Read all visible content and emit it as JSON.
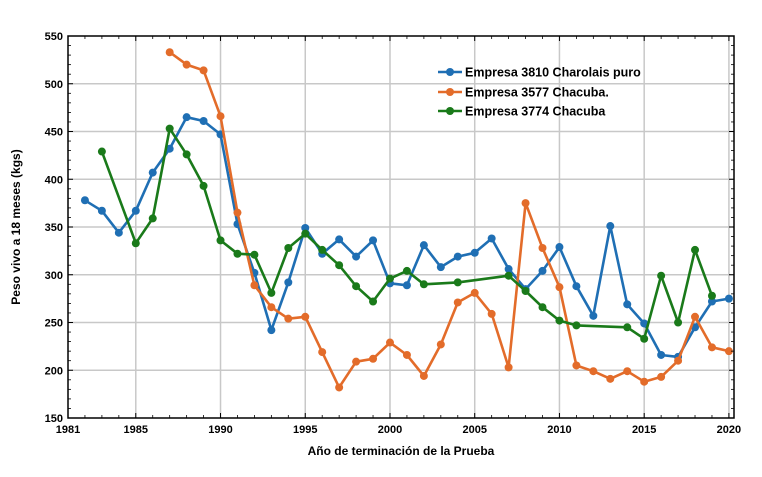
{
  "chart_data": {
    "type": "line",
    "xlabel": "Año de terminación de la Prueba",
    "ylabel": "Peso vivo  a 18 meses (kgs)",
    "xlim": [
      1981,
      2020.3
    ],
    "ylim": [
      150,
      550
    ],
    "x_ticks": [
      1981,
      1985,
      1990,
      1995,
      2000,
      2005,
      2010,
      2015,
      2020
    ],
    "y_ticks": [
      150,
      200,
      250,
      300,
      350,
      400,
      450,
      500,
      550
    ],
    "grid": true,
    "legend_position": "top-right",
    "series": [
      {
        "name": "Empresa 3810  Charolais puro",
        "color": "#1f6fb4",
        "points": [
          [
            1982,
            378
          ],
          [
            1983,
            367
          ],
          [
            1984,
            344
          ],
          [
            1985,
            367
          ],
          [
            1986,
            407
          ],
          [
            1987,
            432
          ],
          [
            1988,
            465
          ],
          [
            1989,
            461
          ],
          [
            1990,
            447
          ],
          [
            1991,
            353
          ],
          [
            1992,
            302
          ],
          [
            1993,
            242
          ],
          [
            1994,
            292
          ],
          [
            1995,
            349
          ],
          [
            1996,
            322
          ],
          [
            1997,
            337
          ],
          [
            1998,
            319
          ],
          [
            1999,
            336
          ],
          [
            2000,
            291
          ],
          [
            2001,
            289
          ],
          [
            2002,
            331
          ],
          [
            2003,
            308
          ],
          [
            2004,
            319
          ],
          [
            2005,
            323
          ],
          [
            2006,
            338
          ],
          [
            2007,
            306
          ],
          [
            2008,
            285
          ],
          [
            2009,
            304
          ],
          [
            2010,
            329
          ],
          [
            2011,
            288
          ],
          [
            2012,
            257
          ],
          [
            2013,
            351
          ],
          [
            2014,
            269
          ],
          [
            2015,
            249
          ],
          [
            2016,
            216
          ],
          [
            2017,
            214
          ],
          [
            2018,
            245
          ],
          [
            2019,
            272
          ],
          [
            2020,
            275
          ]
        ]
      },
      {
        "name": "Empresa 3577  Chacuba.",
        "color": "#e36c2a",
        "points": [
          [
            1987,
            533
          ],
          [
            1988,
            520
          ],
          [
            1989,
            514
          ],
          [
            1990,
            466
          ],
          [
            1991,
            365
          ],
          [
            1992,
            289
          ],
          [
            1993,
            266
          ],
          [
            1994,
            254
          ],
          [
            1995,
            256
          ],
          [
            1996,
            219
          ],
          [
            1997,
            182
          ],
          [
            1998,
            209
          ],
          [
            1999,
            212
          ],
          [
            2000,
            229
          ],
          [
            2001,
            216
          ],
          [
            2002,
            194
          ],
          [
            2003,
            227
          ],
          [
            2004,
            271
          ],
          [
            2005,
            281
          ],
          [
            2006,
            259
          ],
          [
            2007,
            203
          ],
          [
            2008,
            375
          ],
          [
            2009,
            328
          ],
          [
            2010,
            287
          ],
          [
            2011,
            205
          ],
          [
            2012,
            199
          ],
          [
            2013,
            191
          ],
          [
            2014,
            199
          ],
          [
            2015,
            188
          ],
          [
            2016,
            193
          ],
          [
            2017,
            210
          ],
          [
            2018,
            256
          ],
          [
            2019,
            224
          ],
          [
            2020,
            220
          ]
        ]
      },
      {
        "name": "Empresa 3774  Chacuba",
        "color": "#1a7a1a",
        "points": [
          [
            1983,
            429
          ],
          [
            1985,
            333
          ],
          [
            1986,
            359
          ],
          [
            1987,
            453
          ],
          [
            1988,
            426
          ],
          [
            1989,
            393
          ],
          [
            1990,
            336
          ],
          [
            1991,
            322
          ],
          [
            1992,
            321
          ],
          [
            1993,
            281
          ],
          [
            1994,
            328
          ],
          [
            1995,
            343
          ],
          [
            1996,
            326
          ],
          [
            1997,
            310
          ],
          [
            1998,
            288
          ],
          [
            1999,
            272
          ],
          [
            2000,
            296
          ],
          [
            2001,
            304
          ],
          [
            2002,
            290
          ],
          [
            2004,
            292
          ],
          [
            2007,
            299
          ],
          [
            2008,
            283
          ],
          [
            2009,
            266
          ],
          [
            2010,
            252
          ],
          [
            2011,
            247
          ],
          [
            2014,
            245
          ],
          [
            2015,
            233
          ],
          [
            2016,
            299
          ],
          [
            2017,
            250
          ],
          [
            2018,
            326
          ],
          [
            2019,
            278
          ]
        ]
      }
    ]
  }
}
